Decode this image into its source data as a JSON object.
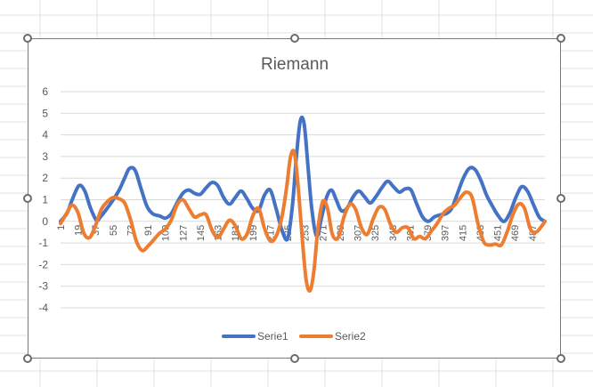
{
  "colors": {
    "series1": "#4472C4",
    "series2": "#ED7D31",
    "gridline": "#d9d9d9",
    "axis_text": "#595959",
    "title_text": "#595959",
    "sheet_grid": "#e1e1e1"
  },
  "chart_data": {
    "type": "line",
    "title": "Riemann",
    "xlabel": "",
    "ylabel": "",
    "ylim": [
      -4,
      6
    ],
    "yticks": [
      -4,
      -3,
      -2,
      -1,
      0,
      1,
      2,
      3,
      4,
      5,
      6
    ],
    "x_tick_labels": [
      "1",
      "19",
      "37",
      "55",
      "73",
      "91",
      "109",
      "127",
      "145",
      "163",
      "181",
      "199",
      "217",
      "235",
      "253",
      "271",
      "289",
      "307",
      "325",
      "343",
      "361",
      "379",
      "397",
      "415",
      "433",
      "451",
      "469",
      "487"
    ],
    "x_count": 500,
    "grid": true,
    "legend_position": "bottom",
    "series": [
      {
        "name": "Serie1",
        "color": "#4472C4",
        "points": [
          [
            1,
            0
          ],
          [
            8,
            0.4
          ],
          [
            13,
            1
          ],
          [
            20,
            1.65
          ],
          [
            26,
            1.4
          ],
          [
            32,
            0.6
          ],
          [
            38,
            0.05
          ],
          [
            42,
            0.2
          ],
          [
            49,
            0.6
          ],
          [
            56,
            1.05
          ],
          [
            62,
            1.5
          ],
          [
            67,
            2
          ],
          [
            72,
            2.45
          ],
          [
            78,
            2.35
          ],
          [
            84,
            1.5
          ],
          [
            90,
            0.7
          ],
          [
            96,
            0.35
          ],
          [
            103,
            0.25
          ],
          [
            109,
            0.15
          ],
          [
            115,
            0.35
          ],
          [
            121,
            0.85
          ],
          [
            127,
            1.3
          ],
          [
            133,
            1.45
          ],
          [
            139,
            1.3
          ],
          [
            145,
            1.25
          ],
          [
            151,
            1.55
          ],
          [
            157,
            1.8
          ],
          [
            163,
            1.65
          ],
          [
            169,
            1.1
          ],
          [
            175,
            0.8
          ],
          [
            181,
            1.1
          ],
          [
            187,
            1.4
          ],
          [
            193,
            1.05
          ],
          [
            199,
            0.6
          ],
          [
            205,
            0.5
          ],
          [
            211,
            1.2
          ],
          [
            217,
            1.45
          ],
          [
            223,
            0.6
          ],
          [
            229,
            -0.4
          ],
          [
            235,
            -0.8
          ],
          [
            240,
            0.8
          ],
          [
            244,
            3
          ],
          [
            248,
            4.65
          ],
          [
            252,
            4.5
          ],
          [
            256,
            2.5
          ],
          [
            260,
            0.5
          ],
          [
            265,
            -0.7
          ],
          [
            270,
            0.2
          ],
          [
            275,
            1.1
          ],
          [
            280,
            1.45
          ],
          [
            285,
            1.0
          ],
          [
            290,
            0.5
          ],
          [
            296,
            0.6
          ],
          [
            302,
            1.1
          ],
          [
            308,
            1.4
          ],
          [
            314,
            1.15
          ],
          [
            320,
            0.85
          ],
          [
            326,
            1.15
          ],
          [
            332,
            1.55
          ],
          [
            338,
            1.85
          ],
          [
            344,
            1.6
          ],
          [
            350,
            1.35
          ],
          [
            356,
            1.5
          ],
          [
            362,
            1.45
          ],
          [
            368,
            0.8
          ],
          [
            374,
            0.2
          ],
          [
            380,
            0
          ],
          [
            386,
            0.2
          ],
          [
            392,
            0.3
          ],
          [
            398,
            0.35
          ],
          [
            404,
            0.6
          ],
          [
            410,
            1.3
          ],
          [
            416,
            2
          ],
          [
            422,
            2.45
          ],
          [
            428,
            2.4
          ],
          [
            434,
            1.9
          ],
          [
            440,
            1.2
          ],
          [
            446,
            0.7
          ],
          [
            452,
            0.25
          ],
          [
            458,
            0
          ],
          [
            464,
            0.4
          ],
          [
            470,
            1.1
          ],
          [
            476,
            1.6
          ],
          [
            482,
            1.4
          ],
          [
            488,
            0.8
          ],
          [
            494,
            0.2
          ],
          [
            500,
            0
          ]
        ]
      },
      {
        "name": "Serie2",
        "color": "#ED7D31",
        "points": [
          [
            1,
            -0.1
          ],
          [
            7,
            0.35
          ],
          [
            13,
            0.75
          ],
          [
            19,
            0.4
          ],
          [
            25,
            -0.55
          ],
          [
            31,
            -0.75
          ],
          [
            37,
            -0.2
          ],
          [
            43,
            0.55
          ],
          [
            49,
            0.9
          ],
          [
            55,
            1.1
          ],
          [
            61,
            1.05
          ],
          [
            67,
            0.85
          ],
          [
            73,
            0.1
          ],
          [
            79,
            -0.9
          ],
          [
            85,
            -1.35
          ],
          [
            91,
            -1.15
          ],
          [
            97,
            -0.85
          ],
          [
            103,
            -0.55
          ],
          [
            109,
            -0.35
          ],
          [
            115,
            0.05
          ],
          [
            121,
            0.75
          ],
          [
            127,
            1.0
          ],
          [
            133,
            0.6
          ],
          [
            139,
            0.2
          ],
          [
            145,
            0.3
          ],
          [
            151,
            0.3
          ],
          [
            157,
            -0.4
          ],
          [
            163,
            -0.75
          ],
          [
            169,
            -0.35
          ],
          [
            175,
            0.05
          ],
          [
            181,
            -0.2
          ],
          [
            187,
            -0.8
          ],
          [
            193,
            -0.6
          ],
          [
            199,
            0.25
          ],
          [
            205,
            0.6
          ],
          [
            211,
            -0.3
          ],
          [
            217,
            -0.9
          ],
          [
            223,
            -0.7
          ],
          [
            229,
            0.2
          ],
          [
            234,
            1.6
          ],
          [
            238,
            3.0
          ],
          [
            242,
            3.15
          ],
          [
            246,
            1.5
          ],
          [
            250,
            -0.8
          ],
          [
            254,
            -2.7
          ],
          [
            258,
            -3.2
          ],
          [
            262,
            -2.3
          ],
          [
            266,
            -0.4
          ],
          [
            271,
            0.9
          ],
          [
            276,
            0.6
          ],
          [
            281,
            -0.6
          ],
          [
            287,
            -0.75
          ],
          [
            293,
            0.2
          ],
          [
            299,
            0.8
          ],
          [
            305,
            0.55
          ],
          [
            311,
            -0.3
          ],
          [
            317,
            -0.6
          ],
          [
            323,
            0.1
          ],
          [
            329,
            0.65
          ],
          [
            335,
            0.55
          ],
          [
            341,
            -0.15
          ],
          [
            347,
            -0.5
          ],
          [
            353,
            -0.3
          ],
          [
            359,
            -0.3
          ],
          [
            365,
            -0.8
          ],
          [
            371,
            -0.7
          ],
          [
            377,
            -0.8
          ],
          [
            383,
            -0.45
          ],
          [
            389,
            -0.1
          ],
          [
            395,
            0.35
          ],
          [
            401,
            0.6
          ],
          [
            407,
            0.75
          ],
          [
            413,
            1.1
          ],
          [
            419,
            1.35
          ],
          [
            425,
            1.1
          ],
          [
            431,
            -0.1
          ],
          [
            437,
            -0.95
          ],
          [
            443,
            -1.1
          ],
          [
            449,
            -1.05
          ],
          [
            455,
            -1.1
          ],
          [
            461,
            -0.5
          ],
          [
            467,
            0.3
          ],
          [
            473,
            0.8
          ],
          [
            479,
            0.6
          ],
          [
            485,
            -0.35
          ],
          [
            491,
            -0.5
          ],
          [
            497,
            -0.2
          ],
          [
            500,
            0
          ]
        ]
      }
    ]
  }
}
